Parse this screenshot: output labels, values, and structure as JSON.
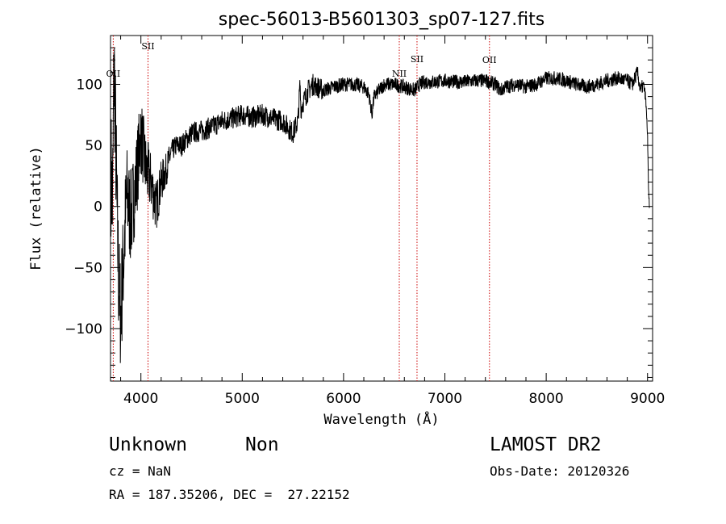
{
  "chart_data": {
    "type": "line",
    "title": "spec-56013-B5601303_sp07-127.fits",
    "xlabel": "Wavelength (Å)",
    "ylabel": "Flux (relative)",
    "xlim": [
      3700,
      9050
    ],
    "ylim": [
      -143,
      140
    ],
    "xticks": [
      4000,
      5000,
      6000,
      7000,
      8000,
      9000
    ],
    "yticks": [
      -100,
      -50,
      0,
      50,
      100
    ],
    "grid": false,
    "line_color": "#000000",
    "marker_color": "#cc0000",
    "series": [
      {
        "x": [
          3705,
          3720,
          3735,
          3750,
          3765,
          3780,
          3800,
          3830,
          3860,
          3900,
          3950,
          4000,
          4050,
          4100,
          4150,
          4200,
          4250,
          4300,
          4350,
          4400,
          4450,
          4500,
          4600,
          4700,
          4800,
          4900,
          5000,
          5100,
          5200,
          5300,
          5400,
          5500,
          5550,
          5570,
          5580,
          5600,
          5650,
          5700,
          5800,
          5900,
          6000,
          6100,
          6200,
          6250,
          6280,
          6300,
          6350,
          6400,
          6500,
          6600,
          6700,
          6750,
          6800,
          6900,
          7000,
          7100,
          7200,
          7300,
          7400,
          7500,
          7550,
          7600,
          7700,
          7800,
          7900,
          8000,
          8100,
          8200,
          8300,
          8400,
          8500,
          8600,
          8700,
          8800,
          8850,
          8900,
          8930,
          8960,
          8980,
          9000,
          9010,
          9020
        ],
        "y": [
          30,
          0,
          120,
          60,
          -10,
          -60,
          -90,
          -40,
          10,
          -10,
          20,
          60,
          30,
          20,
          0,
          20,
          30,
          45,
          50,
          50,
          55,
          60,
          62,
          65,
          70,
          72,
          75,
          73,
          75,
          72,
          70,
          60,
          70,
          100,
          80,
          85,
          95,
          100,
          95,
          98,
          100,
          100,
          98,
          92,
          75,
          90,
          95,
          100,
          100,
          98,
          95,
          100,
          102,
          102,
          103,
          102,
          102,
          103,
          103,
          100,
          95,
          98,
          100,
          98,
          100,
          105,
          105,
          103,
          100,
          98,
          100,
          103,
          105,
          103,
          100,
          110,
          95,
          100,
          90,
          60,
          10,
          0
        ]
      }
    ],
    "line_markers": [
      {
        "label": "OII",
        "x": 3727
      },
      {
        "label": "SII",
        "x": 4070
      },
      {
        "label": "NII",
        "x": 6550
      },
      {
        "label": "SII",
        "x": 6725
      },
      {
        "label": "OII",
        "x": 7440
      }
    ],
    "annotations": {
      "object_class": "Unknown",
      "subclass": "Non",
      "survey": "LAMOST DR2",
      "redshift": "cz = NaN",
      "obs_date": "Obs-Date: 20120326",
      "coords": "RA = 187.35206, DEC =  27.22152"
    }
  }
}
